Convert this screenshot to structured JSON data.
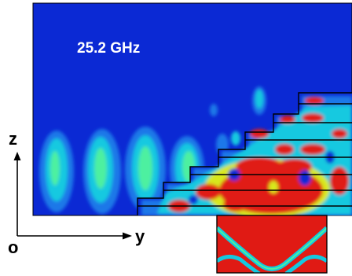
{
  "figure": {
    "frequency_label": "25.2 GHz",
    "axes": {
      "z_label": "z",
      "y_label": "y",
      "origin_label": "o"
    },
    "colormap": [
      "#0a2ad6",
      "#1f78e8",
      "#13c9e0",
      "#4ef0a0",
      "#d8e81a",
      "#e01a14"
    ]
  }
}
